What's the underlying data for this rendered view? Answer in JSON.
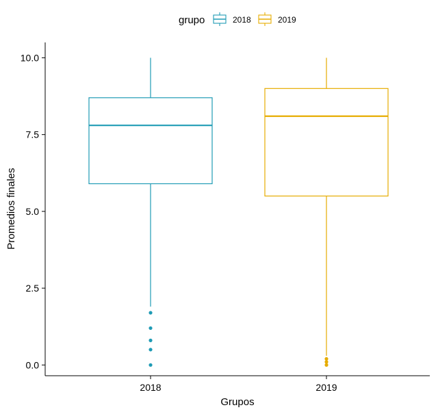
{
  "chart_data": {
    "type": "boxplot",
    "xlabel": "Grupos",
    "ylabel": "Promedios finales",
    "categories": [
      "2018",
      "2019"
    ],
    "ylim": [
      -0.35,
      10.5
    ],
    "y_ticks": [
      0.0,
      2.5,
      5.0,
      7.5,
      10.0
    ],
    "y_tick_labels": [
      "0.0",
      "2.5",
      "5.0",
      "7.5",
      "10.0"
    ],
    "grid": false,
    "legend": {
      "title": "grupo",
      "position": "top",
      "entries": [
        "2018",
        "2019"
      ]
    },
    "series": [
      {
        "name": "2018",
        "color": "#1f9bb5",
        "whisker_low": 1.9,
        "q1": 5.9,
        "median": 7.8,
        "q3": 8.7,
        "whisker_high": 10.0,
        "outliers": [
          1.7,
          1.2,
          0.8,
          0.5,
          0.0
        ]
      },
      {
        "name": "2019",
        "color": "#e6ac00",
        "whisker_low": 0.3,
        "q1": 5.5,
        "median": 8.1,
        "q3": 9.0,
        "whisker_high": 10.0,
        "outliers": [
          0.2,
          0.1,
          0.0
        ]
      }
    ]
  }
}
